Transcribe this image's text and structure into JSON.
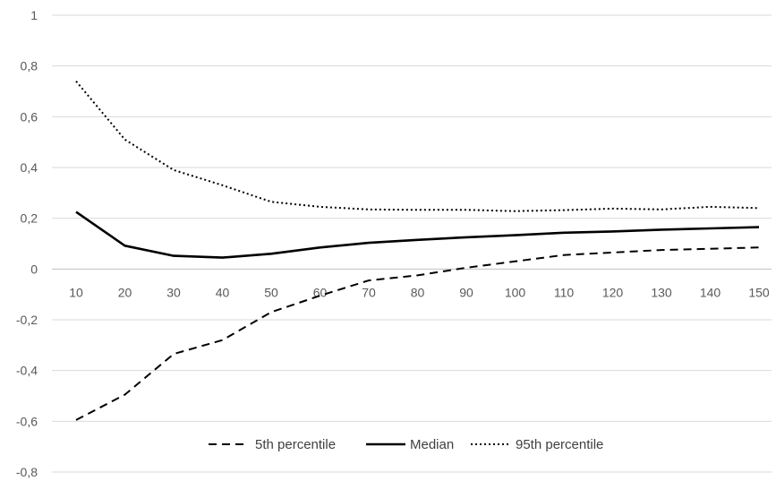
{
  "chart_data": {
    "type": "line",
    "title": "",
    "xlabel": "",
    "ylabel": "",
    "x": [
      10,
      20,
      30,
      40,
      50,
      60,
      70,
      80,
      90,
      100,
      110,
      120,
      130,
      140,
      150
    ],
    "x_tick_labels": [
      "10",
      "20",
      "30",
      "40",
      "50",
      "60",
      "70",
      "80",
      "90",
      "100",
      "110",
      "120",
      "130",
      "140",
      "150"
    ],
    "ylim": [
      -0.8,
      1
    ],
    "y_ticks": [
      1,
      0.8,
      0.6,
      0.4,
      0.2,
      0,
      -0.2,
      -0.4,
      -0.6,
      -0.8
    ],
    "y_tick_labels": [
      "1",
      "0,8",
      "0,6",
      "0,4",
      "0,2",
      "0",
      "-0,2",
      "-0,4",
      "-0,6",
      "-0,8"
    ],
    "grid": true,
    "legend_position": "bottom",
    "series": [
      {
        "name": "5th percentile",
        "style": "dashed",
        "color": "#000000",
        "values": [
          -0.595,
          -0.495,
          -0.335,
          -0.28,
          -0.17,
          -0.105,
          -0.045,
          -0.025,
          0.005,
          0.03,
          0.055,
          0.065,
          0.075,
          0.08,
          0.085
        ]
      },
      {
        "name": "Median",
        "style": "solid",
        "color": "#000000",
        "values": [
          0.225,
          0.092,
          0.052,
          0.045,
          0.06,
          0.085,
          0.103,
          0.115,
          0.125,
          0.133,
          0.143,
          0.148,
          0.155,
          0.16,
          0.165
        ]
      },
      {
        "name": "95th percentile",
        "style": "dotted",
        "color": "#000000",
        "values": [
          0.74,
          0.51,
          0.39,
          0.33,
          0.265,
          0.245,
          0.235,
          0.233,
          0.233,
          0.228,
          0.232,
          0.238,
          0.235,
          0.245,
          0.24
        ]
      }
    ]
  }
}
